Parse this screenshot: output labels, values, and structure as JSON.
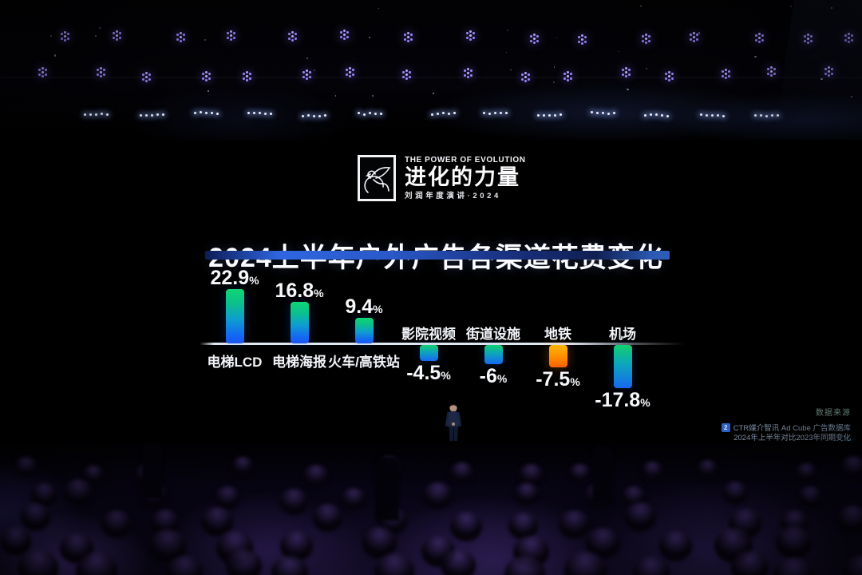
{
  "scene": {
    "event_logo": {
      "tagline_en": "THE POWER OF EVOLUTION",
      "brand_cn": "进化的力量",
      "subtitle_cn": "刘润年度演讲·2024"
    },
    "source": {
      "label": "数据来源",
      "citation_marker": "2",
      "line1": "CTR媒介智讯 Ad Cube 广告数据库",
      "line2": "2024年上半年对比2023年同期变化"
    }
  },
  "chart_data": {
    "type": "bar",
    "title": "2024上半年户外广告各渠道花费变化",
    "unit": "%",
    "categories": [
      "电梯LCD",
      "电梯海报",
      "火车/高铁站",
      "影院视频",
      "街道设施",
      "地铁",
      "机场"
    ],
    "values": [
      22.9,
      16.8,
      9.4,
      -4.5,
      -6,
      -7.5,
      -17.8
    ],
    "value_labels": [
      "22.9",
      "16.8",
      "9.4",
      "-4.5",
      "-6",
      "-7.5",
      "-17.8"
    ],
    "percent_suffix": "%",
    "highlight_index": 5,
    "baseline_value": 0,
    "grid": false,
    "legend": false,
    "orientation": "vertical-diverging",
    "colors": {
      "bar_gradient_top": "#10d673",
      "bar_gradient_bottom": "#1b55f5",
      "highlight_gradient_top": "#ffb501",
      "highlight_gradient_bottom": "#fe5f02",
      "axis_line": "#e2e8f2",
      "title_underline_blue": "#2f66e0",
      "stage_light_purple": "#a08cff",
      "value_text": "#f6f8fc"
    }
  }
}
